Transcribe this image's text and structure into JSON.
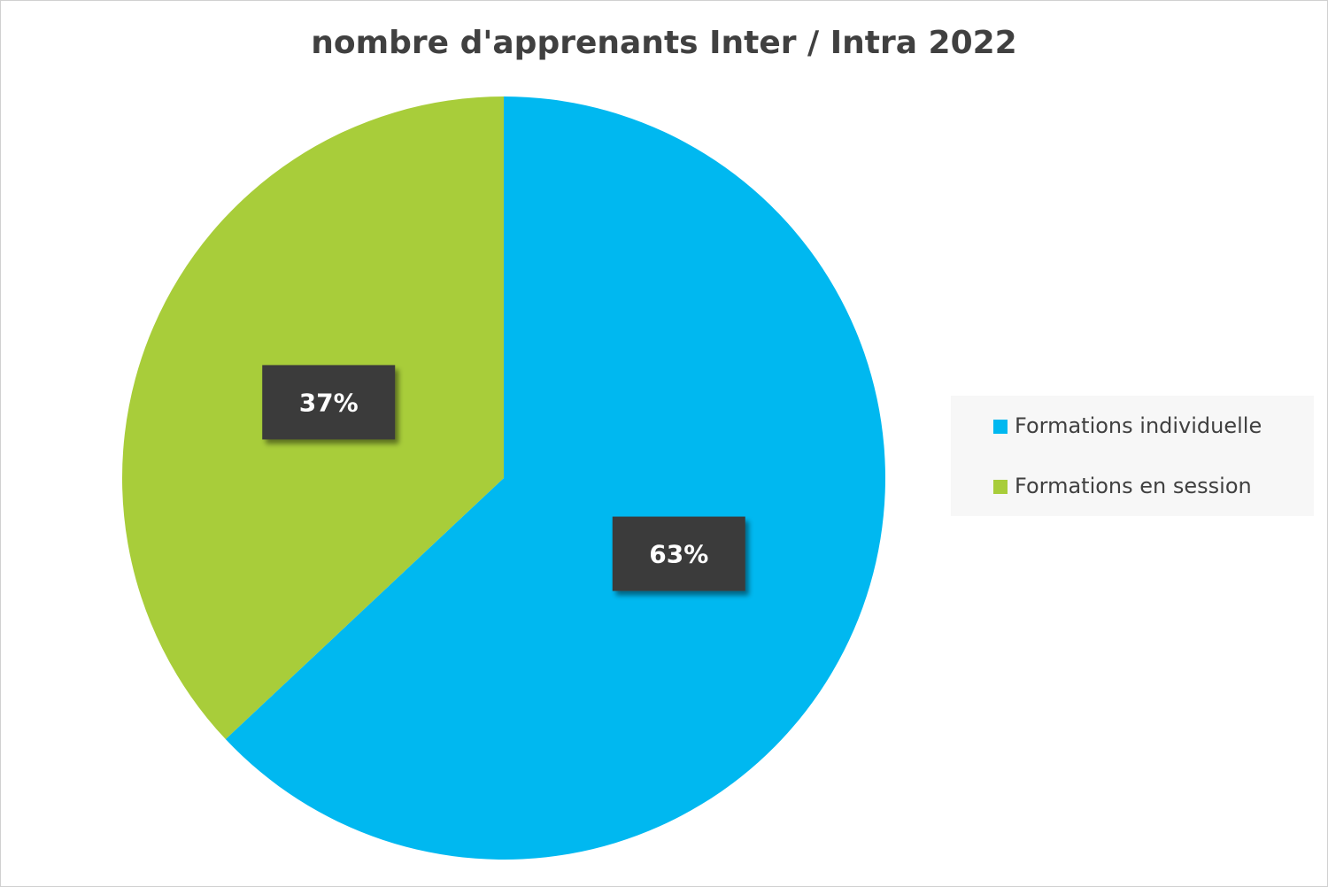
{
  "chart_data": {
    "type": "pie",
    "title": "nombre d'apprenants Inter / Intra 2022",
    "categories": [
      "Formations individuelle",
      "Formations en session"
    ],
    "values": [
      63,
      37
    ],
    "value_labels": [
      "63%",
      "37%"
    ],
    "colors": [
      "#00b8f0",
      "#a8cd3a"
    ],
    "legend": "right"
  }
}
